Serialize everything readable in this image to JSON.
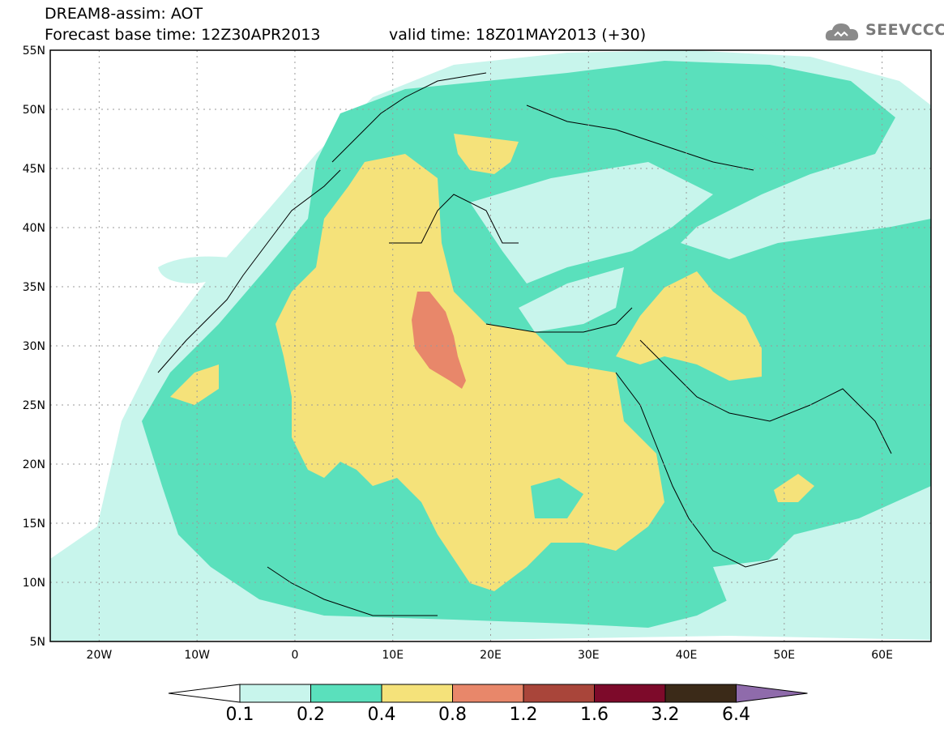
{
  "header": {
    "title_line1": "DREAM8-assim: AOT",
    "title_line2": "Forecast base time: 12Z30APR2013",
    "valid_time": "valid time: 18Z01MAY2013 (+30)",
    "logo_text": "SEEVCCC",
    "logo_icon": "cloud-icon"
  },
  "map": {
    "lon_range": [
      -25,
      65
    ],
    "lat_range": [
      5,
      55
    ],
    "grid": "dotted",
    "lat_labels": [
      "55N",
      "50N",
      "45N",
      "40N",
      "35N",
      "30N",
      "25N",
      "20N",
      "15N",
      "10N",
      "5N"
    ],
    "lon_labels": [
      "20W",
      "10W",
      "0",
      "10E",
      "20E",
      "30E",
      "40E",
      "50E",
      "60E"
    ]
  },
  "legend": {
    "bounds": [
      "0.1",
      "0.2",
      "0.4",
      "0.8",
      "1.2",
      "1.6",
      "3.2",
      "6.4"
    ],
    "colors": [
      "#ffffff",
      "#c8f5ec",
      "#5ae0bc",
      "#f5e27a",
      "#e8876a",
      "#a9453a",
      "#7d0a2a",
      "#3b2a18",
      "#8f6bab"
    ]
  }
}
